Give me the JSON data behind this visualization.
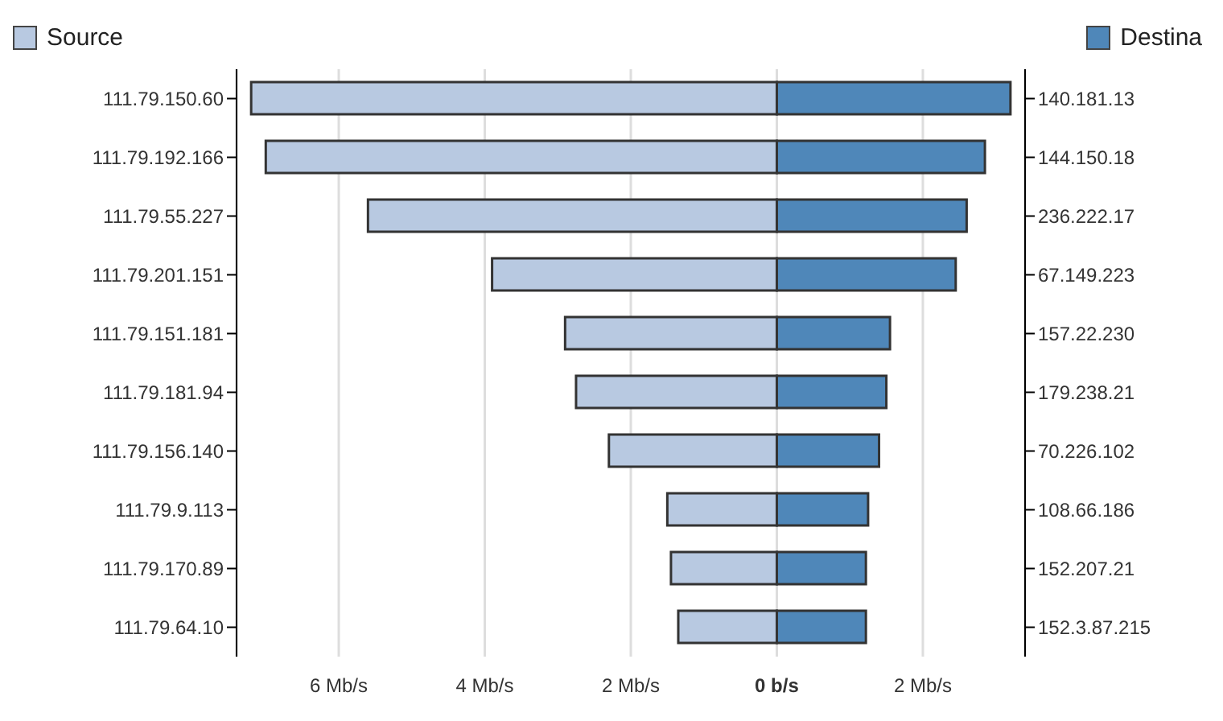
{
  "chart_data": {
    "type": "bar",
    "orientation": "horizontal",
    "stacked": true,
    "categories": [
      "111.79.150.60",
      "111.79.192.166",
      "111.79.55.227",
      "111.79.201.151",
      "111.79.151.181",
      "111.79.181.94",
      "111.79.156.140",
      "111.79.9.113",
      "111.79.170.89",
      "111.79.64.10"
    ],
    "y2_categories": [
      "140.181.13",
      "144.150.18",
      "236.222.17",
      "67.149.223",
      "157.22.230",
      "179.238.21",
      "70.226.102",
      "108.66.186",
      "152.207.21",
      "152.3.87.215"
    ],
    "series": [
      {
        "name": "Source",
        "color": "#b8c9e1",
        "values": [
          -7.2,
          -7.0,
          -5.6,
          -3.9,
          -2.9,
          -2.75,
          -2.3,
          -1.5,
          -1.45,
          -1.35
        ]
      },
      {
        "name": "Destina",
        "color": "#4f87b9",
        "values": [
          3.2,
          2.85,
          2.6,
          2.45,
          1.55,
          1.5,
          1.4,
          1.25,
          1.22,
          1.22
        ]
      }
    ],
    "xlim": [
      -7.4,
      3.4
    ],
    "xticks": [
      {
        "value": -6,
        "label": "6 Mb/s"
      },
      {
        "value": -4,
        "label": "4 Mb/s"
      },
      {
        "value": -2,
        "label": "2 Mb/s"
      },
      {
        "value": 0,
        "label": "0 b/s"
      },
      {
        "value": 2,
        "label": "2 Mb/s"
      }
    ],
    "grid": "x",
    "legend": "top"
  }
}
